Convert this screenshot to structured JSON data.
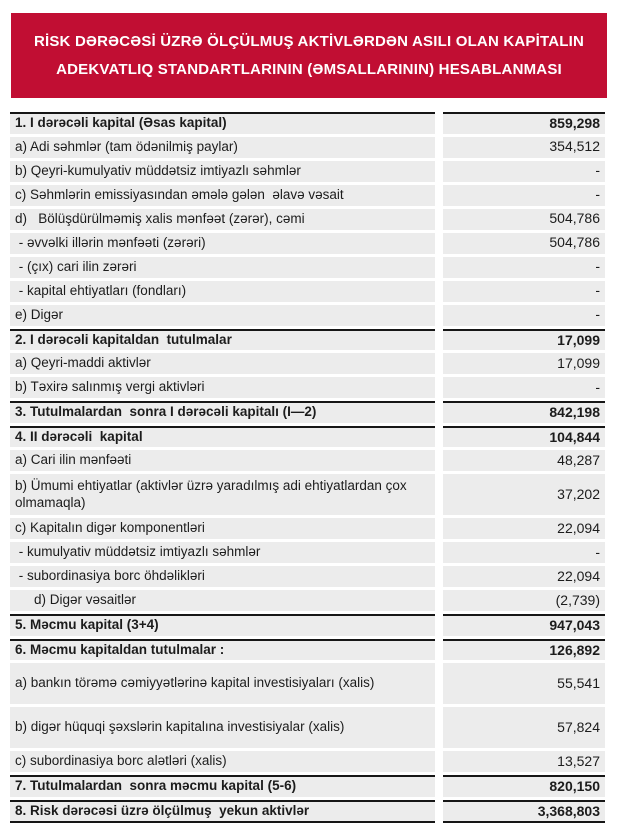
{
  "banner": {
    "title_line1": "RİSK DƏRƏCƏSİ ÜZRƏ ÖLÇÜLMUŞ AKTİVLƏRDƏN ASILI OLAN KAPİTALIN",
    "title_line2": "ADEKVATLIQ STANDARTLARININ (ƏMSALLARININ) HESABLANMASI",
    "background_color": "#C10E33",
    "text_color": "#FFFFFF"
  },
  "table": {
    "row_background_color": "#ECECEC",
    "section_border_color": "#161616",
    "rows": [
      {
        "label": "1. I dərəcəli kapital (Əsas kapital)",
        "value": "859,298",
        "section": true
      },
      {
        "label": "a) Adi səhmlər (tam ödənilmiş paylar)",
        "value": "354,512"
      },
      {
        "label": "b) Qeyri-kumulyativ müddətsiz imtiyazlı səhmlər",
        "value": "-"
      },
      {
        "label": "c) Səhmlərin emissiyasından əmələ gələn  əlavə vəsait",
        "value": "-"
      },
      {
        "label": "d)   Bölüşdürülməmiş xalis mənfəət (zərər), cəmi",
        "value": "504,786"
      },
      {
        "label": " - əvvəlki illərin mənfəəti (zərəri)",
        "value": "504,786"
      },
      {
        "label": " - (çıx) cari ilin zərəri",
        "value": "-"
      },
      {
        "label": " - kapital ehtiyatları (fondları)",
        "value": "-"
      },
      {
        "label": "e) Digər",
        "value": "-"
      },
      {
        "label": "2. I dərəcəli kapitaldan  tutulmalar",
        "value": "17,099",
        "section": true
      },
      {
        "label": "a) Qeyri-maddi aktivlər",
        "value": "17,099"
      },
      {
        "label": "b) Təxirə salınmış vergi aktivləri",
        "value": "-"
      },
      {
        "label": "3. Tutulmalardan  sonra I dərəcəli kapitalı (I—2)",
        "value": "842,198",
        "section": true
      },
      {
        "label": "4. II dərəcəli  kapital",
        "value": "104,844",
        "section": true
      },
      {
        "label": "a) Cari ilin mənfəəti",
        "value": "48,287"
      },
      {
        "label": "b) Ümumi ehtiyatlar (aktivlər üzrə yaradılmış adi ehtiyatlardan çox olmamaqla)",
        "value": "37,202",
        "tall": true
      },
      {
        "label": "c) Kapitalın digər komponentləri",
        "value": "22,094"
      },
      {
        "label": " - kumulyativ müddətsiz imtiyazlı səhmlər",
        "value": "-"
      },
      {
        "label": " - subordinasiya borc öhdəlikləri",
        "value": "22,094"
      },
      {
        "label": "d) Digər vəsaitlər",
        "value": "(2,739)",
        "indent": true
      },
      {
        "label": "5. Məcmu kapital (3+4)",
        "value": "947,043",
        "section": true
      },
      {
        "label": "6. Məcmu kapitaldan tutulmalar :",
        "value": "126,892",
        "section": true
      },
      {
        "label": "a) bankın törəmə cəmiyyətlərinə kapital investisiyaları (xalis)",
        "value": "55,541",
        "tall": true
      },
      {
        "label": "b) digər hüquqi şəxslərin kapitalına investisiyalar (xalis)",
        "value": "57,824",
        "tall": true
      },
      {
        "label": "c) subordinasiya borc alətləri (xalis)",
        "value": "13,527"
      },
      {
        "label": "7. Tutulmalardan  sonra məcmu kapital (5-6)",
        "value": "820,150",
        "section": true
      },
      {
        "label": "8. Risk dərəcəsi üzrə ölçülmuş  yekun aktivlər",
        "value": "3,368,803",
        "section": true,
        "last": true
      }
    ]
  }
}
